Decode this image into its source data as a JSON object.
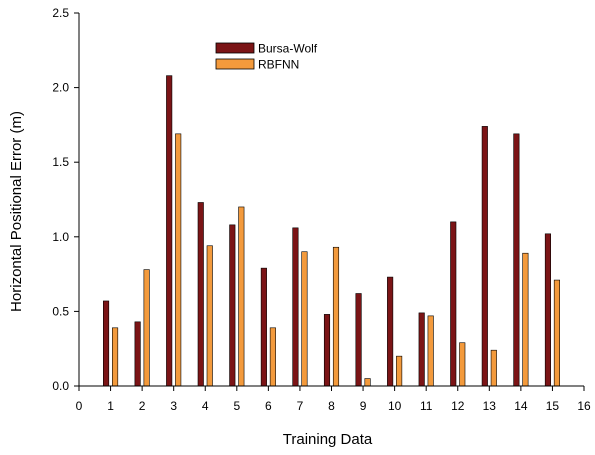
{
  "chart_data": {
    "type": "bar",
    "title": "",
    "xlabel": "Training Data",
    "ylabel": "Horizontal Positional Error (m)",
    "xlim": [
      0,
      16
    ],
    "ylim": [
      0,
      2.5
    ],
    "x_ticks": [
      "0",
      "1",
      "2",
      "3",
      "4",
      "5",
      "6",
      "7",
      "8",
      "9",
      "10",
      "11",
      "12",
      "13",
      "14",
      "15",
      "16"
    ],
    "y_ticks": [
      "0.0",
      "0.5",
      "1.0",
      "1.5",
      "2.0",
      "2.5"
    ],
    "categories": [
      1,
      2,
      3,
      4,
      5,
      6,
      7,
      8,
      9,
      10,
      11,
      12,
      13,
      14,
      15
    ],
    "series": [
      {
        "name": "Bursa-Wolf",
        "color": "#7b1416",
        "values": [
          0.57,
          0.43,
          2.08,
          1.23,
          1.08,
          0.79,
          1.06,
          0.48,
          0.62,
          0.73,
          0.49,
          1.1,
          1.74,
          1.69,
          1.02
        ]
      },
      {
        "name": "RBFNN",
        "color": "#f39a3c",
        "values": [
          0.39,
          0.78,
          1.69,
          0.94,
          1.2,
          0.39,
          0.9,
          0.93,
          0.05,
          0.2,
          0.47,
          0.29,
          0.24,
          0.89,
          0.71
        ]
      }
    ],
    "legend_position": "top-center",
    "grid": false
  }
}
